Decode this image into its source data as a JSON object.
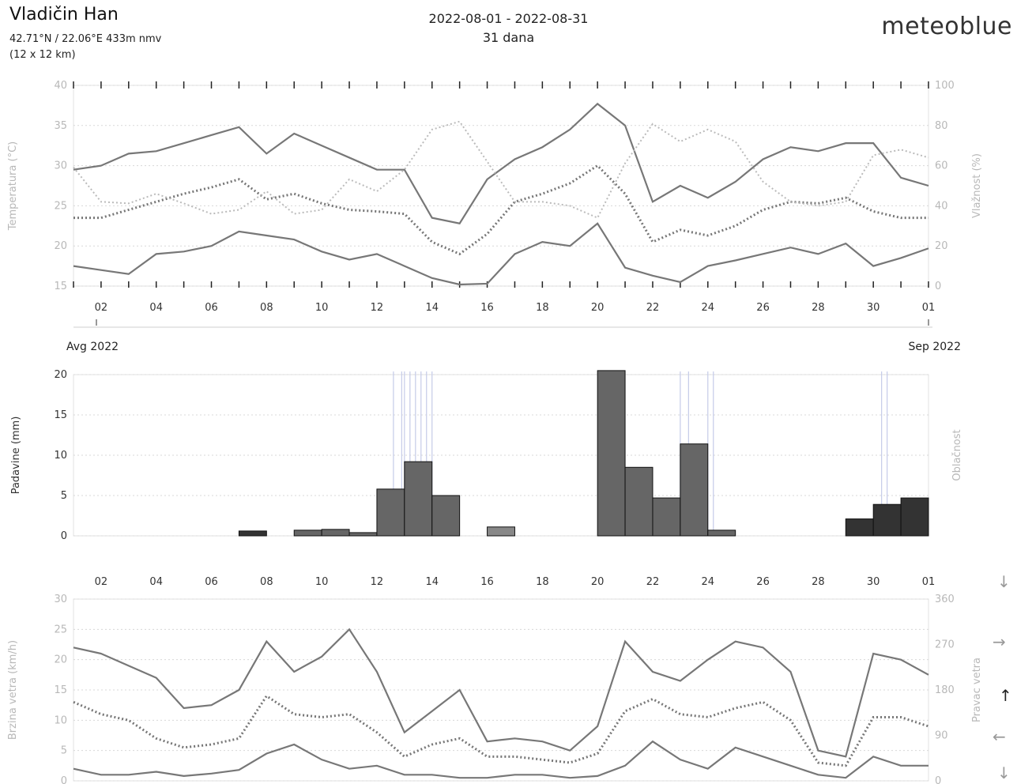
{
  "header": {
    "location": "Vladičin Han",
    "coords": "42.71°N / 22.06°E  433m nmv",
    "grid": "(12 x 12 km)",
    "period": "2022-08-01 - 2022-08-31",
    "days": "31 dana",
    "brand": "meteoblue"
  },
  "colors": {
    "line": "#777777",
    "faint": "#bbbbbb",
    "bar": "#666666",
    "bar_dark": "#333333",
    "vline": "#c5cbe8"
  },
  "chart_data": [
    {
      "type": "line",
      "ylabel": "Temperatura (°C)",
      "y2label": "Vlažnost (%)",
      "ylim": [
        15,
        40
      ],
      "y2lim": [
        0,
        100
      ],
      "yticks": [
        "15",
        "20",
        "25",
        "30",
        "35",
        "40"
      ],
      "y2ticks": [
        "0",
        "20",
        "40",
        "60",
        "80",
        "100"
      ],
      "x": [
        1,
        2,
        3,
        4,
        5,
        6,
        7,
        8,
        9,
        10,
        11,
        12,
        13,
        14,
        15,
        16,
        17,
        18,
        19,
        20,
        21,
        22,
        23,
        24,
        25,
        26,
        27,
        28,
        29,
        30,
        31,
        32
      ],
      "xticklabels": [
        "02",
        "04",
        "06",
        "08",
        "10",
        "12",
        "14",
        "16",
        "18",
        "20",
        "22",
        "24",
        "26",
        "28",
        "30",
        "01"
      ],
      "date_labels": {
        "left": "Avg 2022",
        "right": "Sep 2022"
      },
      "series": [
        {
          "style": "solid",
          "values": [
            29.5,
            30.0,
            31.5,
            31.8,
            32.8,
            33.8,
            34.8,
            31.5,
            34.0,
            32.5,
            31.0,
            29.5,
            29.5,
            23.5,
            22.8,
            28.3,
            30.8,
            32.3,
            34.5,
            37.7,
            35.0,
            25.5,
            27.5,
            26.0,
            28.0,
            30.8,
            32.3,
            31.8,
            32.8,
            32.8,
            28.5,
            27.5
          ]
        },
        {
          "style": "solid",
          "values": [
            17.5,
            17.0,
            16.5,
            19.0,
            19.3,
            20.0,
            21.8,
            21.3,
            20.8,
            19.3,
            18.3,
            19.0,
            17.5,
            16.0,
            15.2,
            15.3,
            19.0,
            20.5,
            20.0,
            22.8,
            17.3,
            16.3,
            15.5,
            17.5,
            18.2,
            19.0,
            19.8,
            19.0,
            20.3,
            17.5,
            18.5,
            19.7
          ]
        },
        {
          "style": "dotted",
          "values": [
            23.5,
            23.5,
            24.5,
            25.5,
            26.5,
            27.3,
            28.3,
            25.8,
            26.5,
            25.3,
            24.5,
            24.3,
            24.0,
            20.5,
            19.0,
            21.5,
            25.5,
            26.5,
            27.8,
            30.0,
            26.5,
            20.5,
            22.0,
            21.3,
            22.5,
            24.5,
            25.5,
            25.3,
            26.0,
            24.3,
            23.5,
            23.5
          ]
        },
        {
          "style": "dotted-faint",
          "values": [
            29.8,
            25.5,
            25.3,
            26.5,
            25.3,
            24.0,
            24.5,
            26.8,
            24.0,
            24.5,
            28.3,
            26.8,
            29.5,
            34.5,
            35.5,
            30.5,
            25.5,
            25.5,
            25.0,
            23.5,
            30.3,
            35.2,
            33.0,
            34.5,
            33.0,
            28.0,
            25.5,
            25.0,
            25.5,
            31.3,
            32.0,
            31.0
          ]
        }
      ]
    },
    {
      "type": "bar",
      "ylabel": "Padavine (mm)",
      "y2label": "Oblačnost",
      "ylim": [
        0,
        20
      ],
      "yticks": [
        "0",
        "5",
        "10",
        "15",
        "20"
      ],
      "bars": [
        {
          "x": 7.5,
          "value": 0.6,
          "shade": "dark"
        },
        {
          "x": 9.5,
          "value": 0.7,
          "shade": "mid"
        },
        {
          "x": 10.5,
          "value": 0.8,
          "shade": "mid"
        },
        {
          "x": 11.5,
          "value": 0.4,
          "shade": "mid"
        },
        {
          "x": 12.5,
          "value": 5.8,
          "shade": "mid"
        },
        {
          "x": 13.5,
          "value": 9.2,
          "shade": "mid"
        },
        {
          "x": 14.5,
          "value": 5.0,
          "shade": "mid"
        },
        {
          "x": 16.5,
          "value": 1.1,
          "shade": "light"
        },
        {
          "x": 20.5,
          "value": 20.5,
          "shade": "mid"
        },
        {
          "x": 21.5,
          "value": 8.5,
          "shade": "mid"
        },
        {
          "x": 22.5,
          "value": 4.7,
          "shade": "mid"
        },
        {
          "x": 23.5,
          "value": 11.4,
          "shade": "mid"
        },
        {
          "x": 24.5,
          "value": 0.7,
          "shade": "mid"
        },
        {
          "x": 29.5,
          "value": 2.1,
          "shade": "dark"
        },
        {
          "x": 30.5,
          "value": 3.9,
          "shade": "dark"
        },
        {
          "x": 31.5,
          "value": 4.7,
          "shade": "dark"
        }
      ],
      "vlines": [
        12.6,
        12.9,
        13.0,
        13.2,
        13.4,
        13.6,
        13.8,
        14.0,
        23.0,
        23.3,
        24.0,
        24.2,
        30.3,
        30.5
      ]
    },
    {
      "type": "line",
      "ylabel": "Brzina vetra (km/h)",
      "y2label": "Pravac vetra",
      "ylim": [
        0,
        30
      ],
      "y2lim": [
        0,
        360
      ],
      "yticks": [
        "0",
        "5",
        "10",
        "15",
        "20",
        "25",
        "30"
      ],
      "y2ticks": [
        "0",
        "90",
        "180",
        "270",
        "360"
      ],
      "x": [
        1,
        2,
        3,
        4,
        5,
        6,
        7,
        8,
        9,
        10,
        11,
        12,
        13,
        14,
        15,
        16,
        17,
        18,
        19,
        20,
        21,
        22,
        23,
        24,
        25,
        26,
        27,
        28,
        29,
        30,
        31,
        32
      ],
      "xticklabels": [
        "02",
        "04",
        "06",
        "08",
        "10",
        "12",
        "14",
        "16",
        "18",
        "20",
        "22",
        "24",
        "26",
        "28",
        "30",
        "01"
      ],
      "series": [
        {
          "style": "solid",
          "values": [
            22.0,
            21.0,
            19.0,
            17.0,
            12.0,
            12.5,
            15.0,
            23.0,
            18.0,
            20.5,
            25.0,
            18.0,
            8.0,
            11.5,
            15.0,
            6.5,
            7.0,
            6.5,
            5.0,
            9.0,
            23.0,
            18.0,
            16.5,
            20.0,
            23.0,
            22.0,
            18.0,
            5.0,
            4.0,
            21.0,
            20.0,
            17.5
          ]
        },
        {
          "style": "dotted",
          "values": [
            13.0,
            11.0,
            10.0,
            7.0,
            5.5,
            6.0,
            7.0,
            14.0,
            11.0,
            10.5,
            11.0,
            8.0,
            4.0,
            6.0,
            7.0,
            4.0,
            4.0,
            3.5,
            3.0,
            4.5,
            11.5,
            13.5,
            11.0,
            10.5,
            12.0,
            13.0,
            10.0,
            3.0,
            2.5,
            10.5,
            10.5,
            9.0
          ]
        },
        {
          "style": "solid",
          "values": [
            2.0,
            1.0,
            1.0,
            1.5,
            0.8,
            1.2,
            1.8,
            4.5,
            6.0,
            3.5,
            2.0,
            2.5,
            1.0,
            1.0,
            0.5,
            0.5,
            1.0,
            1.0,
            0.5,
            0.8,
            2.5,
            6.5,
            3.5,
            2.0,
            5.5,
            4.0,
            2.5,
            1.0,
            0.5,
            4.0,
            2.5,
            2.5
          ]
        }
      ],
      "direction_arrows": [
        "↓",
        "→",
        "↑",
        "←",
        "↓"
      ]
    }
  ]
}
